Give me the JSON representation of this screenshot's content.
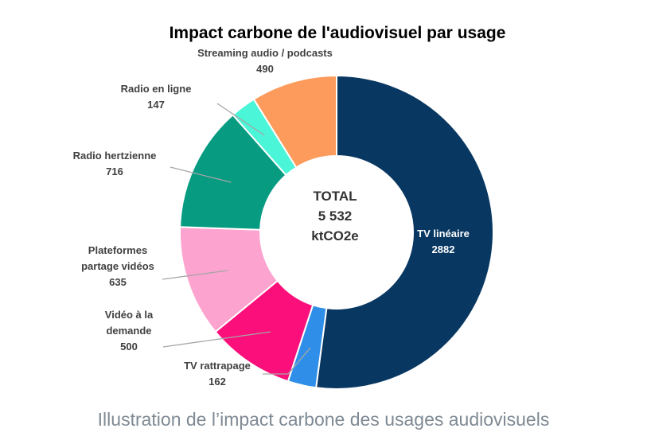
{
  "caption": "Illustration de l’impact carbone des usages audiovisuels",
  "chart_data": {
    "type": "pie",
    "title": "Impact carbone de l'audiovisuel par usage",
    "center_label": [
      "TOTAL",
      "5 532",
      "ktCO2e"
    ],
    "slices": [
      {
        "label": [
          "TV linéaire"
        ],
        "value": 2882,
        "value_text": "2882",
        "color": "#083762"
      },
      {
        "label": [
          "TV rattrapage"
        ],
        "value": 162,
        "value_text": "162",
        "color": "#2f8fe8"
      },
      {
        "label": [
          "Vidéo à la",
          "demande"
        ],
        "value": 500,
        "value_text": "500",
        "color": "#fb0f7b"
      },
      {
        "label": [
          "Plateformes",
          "partage vidéos"
        ],
        "value": 635,
        "value_text": "635",
        "color": "#fda3cf"
      },
      {
        "label": [
          "Radio hertzienne"
        ],
        "value": 716,
        "value_text": "716",
        "color": "#079b82"
      },
      {
        "label": [
          "Radio en ligne"
        ],
        "value": 147,
        "value_text": "147",
        "color": "#4bf5d7"
      },
      {
        "label": [
          "Streaming audio / podcasts"
        ],
        "value": 490,
        "value_text": "490",
        "color": "#fd9b5c"
      }
    ]
  }
}
